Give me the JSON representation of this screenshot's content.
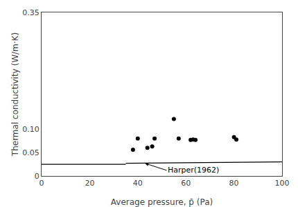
{
  "chart_data": {
    "type": "scatter",
    "xlabel": "Average pressure, p̄ (Pa)",
    "ylabel": "Thermal conductivity (W/m·K)",
    "series": [
      {
        "type": "scatter",
        "color": "#000000",
        "marker": "circle",
        "x": [
          38,
          40,
          44,
          46,
          47,
          55,
          57,
          62,
          63,
          64,
          80,
          81
        ],
        "values": [
          0.056,
          0.08,
          0.06,
          0.063,
          0.08,
          0.122,
          0.08,
          0.077,
          0.078,
          0.077,
          0.083,
          0.078
        ]
      },
      {
        "type": "line",
        "color": "#000000",
        "line_style": "solid",
        "x": [
          0,
          35
        ],
        "values": [
          0.025,
          0.025
        ]
      },
      {
        "type": "line",
        "color": "#000000",
        "line_style": "solid",
        "x": [
          35,
          100
        ],
        "values": [
          0.027,
          0.03
        ]
      }
    ],
    "annotations": [
      {
        "text": "Harper(1962)",
        "x": 52,
        "y": 0.012,
        "arrow_x": 43,
        "arrow_y": 0.027
      }
    ],
    "xlim": [
      0,
      100
    ],
    "ylim": [
      0,
      0.35
    ],
    "xticks": [
      0,
      20,
      40,
      60,
      80,
      100
    ],
    "yticks": [
      0,
      0.05,
      {
        "value": 0.1,
        "label": "0.10"
      },
      0.35
    ],
    "grid": false
  }
}
